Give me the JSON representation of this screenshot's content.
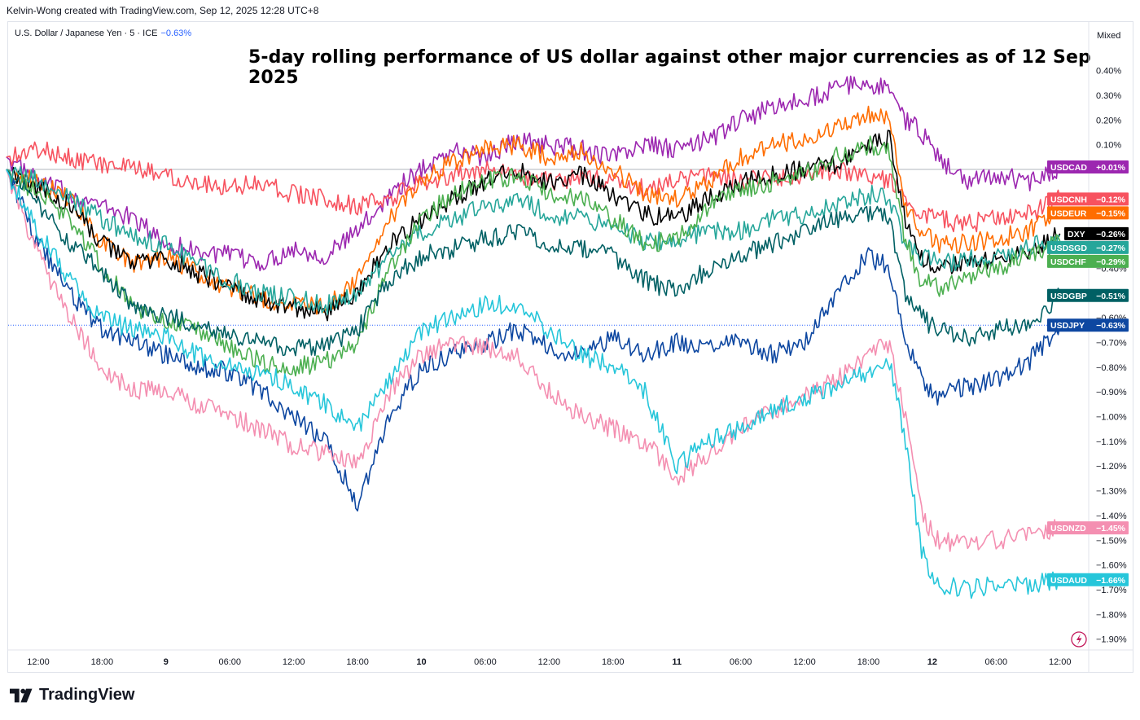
{
  "header": {
    "credit": "Kelvin-Wong created with TradingView.com, Sep 12, 2025 12:28 UTC+8",
    "symbol": "U.S. Dollar / Japanese Yen · 5 · ICE",
    "symbol_change": "−0.63%",
    "scale_mode": "Mixed"
  },
  "footer": {
    "brand": "TradingView"
  },
  "chart_data": {
    "type": "line",
    "title": "5-day rolling performance of US dollar against other major currencies as of 12 Sep 2025",
    "xlabel": "",
    "ylabel": "",
    "ylim": [
      -1.95,
      0.52
    ],
    "y_unit": "%",
    "y_ticks": [
      "0.40%",
      "0.30%",
      "0.20%",
      "0.10%",
      "−0.40%",
      "−0.60%",
      "−0.70%",
      "−0.80%",
      "−0.90%",
      "−1.00%",
      "−1.10%",
      "−1.20%",
      "−1.30%",
      "−1.40%",
      "−1.50%",
      "−1.60%",
      "−1.70%",
      "−1.80%",
      "−1.90%"
    ],
    "y_tick_values": [
      0.4,
      0.3,
      0.2,
      0.1,
      -0.4,
      -0.6,
      -0.7,
      -0.8,
      -0.9,
      -1.0,
      -1.1,
      -1.2,
      -1.3,
      -1.4,
      -1.5,
      -1.6,
      -1.7,
      -1.8,
      -1.9
    ],
    "x_ticks": [
      "12:00",
      "18:00",
      "9",
      "06:00",
      "12:00",
      "18:00",
      "10",
      "06:00",
      "12:00",
      "18:00",
      "11",
      "06:00",
      "12:00",
      "18:00",
      "12",
      "06:00",
      "12:00"
    ],
    "x_tick_hours": [
      12,
      18,
      24,
      30,
      36,
      42,
      48,
      54,
      60,
      66,
      72,
      78,
      84,
      90,
      96,
      102,
      108
    ],
    "x_range_hours": [
      9,
      110.5
    ],
    "zero_line": 0.0,
    "grid": false,
    "legend": "right-axis badges",
    "series": [
      {
        "name": "USDCAD",
        "label": "+0.01%",
        "color": "#9c27b0",
        "x": [
          9,
          12,
          15,
          18,
          21,
          24,
          27,
          30,
          33,
          36,
          39,
          42,
          45,
          48,
          51,
          54,
          57,
          60,
          63,
          66,
          69,
          72,
          75,
          78,
          81,
          84,
          87,
          90,
          92,
          93.5,
          95,
          96.5,
          99,
          102,
          105,
          108
        ],
        "y": [
          0.05,
          -0.05,
          -0.1,
          -0.15,
          -0.2,
          -0.3,
          -0.33,
          -0.35,
          -0.38,
          -0.32,
          -0.35,
          -0.25,
          -0.1,
          0.0,
          0.08,
          0.05,
          0.12,
          0.1,
          0.08,
          0.05,
          0.1,
          0.08,
          0.12,
          0.2,
          0.25,
          0.28,
          0.33,
          0.35,
          0.32,
          0.2,
          0.15,
          0.05,
          -0.05,
          -0.02,
          -0.05,
          0.01
        ]
      },
      {
        "name": "USDCNH",
        "label": "−0.12%",
        "color": "#f7525f",
        "x": [
          9,
          12,
          15,
          18,
          21,
          24,
          27,
          30,
          33,
          36,
          39,
          42,
          45,
          48,
          51,
          54,
          57,
          60,
          63,
          66,
          69,
          72,
          75,
          78,
          81,
          84,
          87,
          90,
          92,
          93.5,
          95,
          96.5,
          99,
          102,
          105,
          108
        ],
        "y": [
          0.05,
          0.08,
          0.05,
          0.02,
          0.0,
          -0.02,
          -0.05,
          -0.07,
          -0.05,
          -0.1,
          -0.12,
          -0.15,
          -0.12,
          -0.05,
          -0.02,
          0.0,
          -0.02,
          -0.05,
          -0.03,
          -0.05,
          -0.08,
          -0.05,
          -0.03,
          -0.05,
          -0.03,
          -0.02,
          0.0,
          -0.02,
          -0.05,
          -0.1,
          -0.18,
          -0.2,
          -0.22,
          -0.2,
          -0.18,
          -0.12
        ]
      },
      {
        "name": "USDEUR",
        "label": "−0.15%",
        "color": "#ff6d00",
        "x": [
          9,
          12,
          15,
          18,
          21,
          24,
          27,
          30,
          33,
          36,
          39,
          42,
          45,
          48,
          51,
          54,
          57,
          60,
          63,
          66,
          69,
          72,
          75,
          78,
          81,
          84,
          87,
          90,
          92,
          93.5,
          95,
          96.5,
          99,
          102,
          105,
          108
        ],
        "y": [
          0.0,
          -0.05,
          -0.12,
          -0.3,
          -0.38,
          -0.35,
          -0.42,
          -0.48,
          -0.52,
          -0.55,
          -0.55,
          -0.45,
          -0.2,
          -0.05,
          0.03,
          0.08,
          0.1,
          0.05,
          0.08,
          0.0,
          -0.1,
          -0.12,
          -0.05,
          0.05,
          0.1,
          0.12,
          0.18,
          0.22,
          0.2,
          -0.15,
          -0.25,
          -0.3,
          -0.3,
          -0.28,
          -0.25,
          -0.15
        ]
      },
      {
        "name": "DXY",
        "label": "−0.26%",
        "color": "#000000",
        "x": [
          9,
          12,
          15,
          18,
          21,
          24,
          27,
          30,
          33,
          36,
          39,
          42,
          45,
          48,
          51,
          54,
          57,
          60,
          63,
          66,
          69,
          72,
          75,
          78,
          81,
          84,
          87,
          90,
          92,
          93.5,
          95,
          96.5,
          99,
          102,
          105,
          108
        ],
        "y": [
          0.0,
          -0.08,
          -0.15,
          -0.3,
          -0.38,
          -0.36,
          -0.42,
          -0.48,
          -0.53,
          -0.56,
          -0.58,
          -0.5,
          -0.3,
          -0.2,
          -0.12,
          -0.05,
          0.0,
          -0.05,
          -0.02,
          -0.1,
          -0.18,
          -0.2,
          -0.12,
          -0.05,
          -0.02,
          0.0,
          0.02,
          0.1,
          0.12,
          -0.2,
          -0.35,
          -0.4,
          -0.38,
          -0.36,
          -0.34,
          -0.26
        ]
      },
      {
        "name": "USDSGD",
        "label": "−0.27%",
        "color": "#26a69a",
        "x": [
          9,
          12,
          15,
          18,
          21,
          24,
          27,
          30,
          33,
          36,
          39,
          42,
          45,
          48,
          51,
          54,
          57,
          60,
          63,
          66,
          69,
          72,
          75,
          78,
          81,
          84,
          87,
          90,
          92,
          93.5,
          95,
          96.5,
          99,
          102,
          105,
          108
        ],
        "y": [
          0.0,
          -0.05,
          -0.12,
          -0.2,
          -0.28,
          -0.3,
          -0.38,
          -0.45,
          -0.5,
          -0.52,
          -0.55,
          -0.5,
          -0.35,
          -0.25,
          -0.2,
          -0.15,
          -0.12,
          -0.18,
          -0.2,
          -0.22,
          -0.3,
          -0.28,
          -0.25,
          -0.25,
          -0.2,
          -0.18,
          -0.15,
          -0.1,
          -0.12,
          -0.3,
          -0.35,
          -0.38,
          -0.37,
          -0.35,
          -0.32,
          -0.27
        ]
      },
      {
        "name": "USDCHF",
        "label": "−0.29%",
        "color": "#4caf50",
        "x": [
          9,
          12,
          15,
          18,
          21,
          24,
          27,
          30,
          33,
          36,
          39,
          42,
          45,
          48,
          51,
          54,
          57,
          60,
          63,
          66,
          69,
          72,
          75,
          78,
          81,
          84,
          87,
          90,
          92,
          93.5,
          95,
          96.5,
          99,
          102,
          105,
          108
        ],
        "y": [
          0.0,
          -0.1,
          -0.2,
          -0.4,
          -0.55,
          -0.62,
          -0.65,
          -0.72,
          -0.78,
          -0.8,
          -0.78,
          -0.7,
          -0.4,
          -0.2,
          -0.1,
          -0.05,
          -0.02,
          -0.1,
          -0.12,
          -0.2,
          -0.3,
          -0.28,
          -0.15,
          -0.08,
          -0.05,
          -0.02,
          0.05,
          0.1,
          0.08,
          -0.3,
          -0.45,
          -0.48,
          -0.45,
          -0.4,
          -0.35,
          -0.29
        ]
      },
      {
        "name": "USDGBP",
        "label": "−0.51%",
        "color": "#006064",
        "x": [
          9,
          12,
          15,
          18,
          21,
          24,
          27,
          30,
          33,
          36,
          39,
          42,
          45,
          48,
          51,
          54,
          57,
          60,
          63,
          66,
          69,
          72,
          75,
          78,
          81,
          84,
          87,
          90,
          92,
          93.5,
          95,
          96.5,
          99,
          102,
          105,
          108
        ],
        "y": [
          0.0,
          -0.15,
          -0.3,
          -0.42,
          -0.55,
          -0.6,
          -0.62,
          -0.68,
          -0.7,
          -0.72,
          -0.72,
          -0.65,
          -0.45,
          -0.35,
          -0.32,
          -0.28,
          -0.25,
          -0.3,
          -0.32,
          -0.35,
          -0.45,
          -0.5,
          -0.4,
          -0.35,
          -0.3,
          -0.25,
          -0.2,
          -0.18,
          -0.2,
          -0.5,
          -0.6,
          -0.65,
          -0.68,
          -0.65,
          -0.62,
          -0.51
        ]
      },
      {
        "name": "USDJPY",
        "label": "−0.63%",
        "color": "#0d47a1",
        "x": [
          9,
          12,
          15,
          18,
          21,
          24,
          27,
          30,
          33,
          36,
          39,
          42,
          45,
          48,
          51,
          54,
          57,
          60,
          63,
          66,
          69,
          72,
          75,
          78,
          81,
          84,
          87,
          90,
          92,
          93.5,
          95,
          96.5,
          99,
          102,
          105,
          108
        ],
        "y": [
          0.0,
          -0.3,
          -0.5,
          -0.65,
          -0.7,
          -0.75,
          -0.8,
          -0.82,
          -0.9,
          -1.0,
          -1.1,
          -1.35,
          -1.0,
          -0.8,
          -0.75,
          -0.7,
          -0.65,
          -0.72,
          -0.75,
          -0.68,
          -0.75,
          -0.7,
          -0.72,
          -0.7,
          -0.75,
          -0.7,
          -0.5,
          -0.35,
          -0.4,
          -0.7,
          -0.85,
          -0.92,
          -0.88,
          -0.85,
          -0.78,
          -0.63
        ]
      },
      {
        "name": "USDNZD",
        "label": "−1.45%",
        "color": "#f48fb1",
        "x": [
          9,
          12,
          15,
          18,
          21,
          24,
          27,
          30,
          33,
          36,
          39,
          42,
          45,
          48,
          51,
          54,
          57,
          60,
          63,
          66,
          69,
          72,
          75,
          78,
          81,
          84,
          87,
          90,
          92,
          93.5,
          95,
          96.5,
          99,
          102,
          105,
          108
        ],
        "y": [
          0.0,
          -0.35,
          -0.6,
          -0.8,
          -0.9,
          -0.88,
          -0.95,
          -1.0,
          -1.05,
          -1.12,
          -1.15,
          -1.2,
          -0.9,
          -0.75,
          -0.7,
          -0.72,
          -0.75,
          -0.9,
          -1.0,
          -1.05,
          -1.1,
          -1.25,
          -1.15,
          -1.05,
          -0.98,
          -0.92,
          -0.85,
          -0.75,
          -0.7,
          -1.0,
          -1.4,
          -1.5,
          -1.52,
          -1.5,
          -1.48,
          -1.45
        ]
      },
      {
        "name": "USDAUD",
        "label": "−1.66%",
        "color": "#26c6da",
        "x": [
          9,
          12,
          15,
          18,
          21,
          24,
          27,
          30,
          33,
          36,
          39,
          42,
          45,
          48,
          51,
          54,
          57,
          60,
          63,
          66,
          69,
          72,
          75,
          78,
          81,
          84,
          87,
          90,
          92,
          93.5,
          95,
          96.5,
          99,
          102,
          105,
          108
        ],
        "y": [
          0.0,
          -0.25,
          -0.45,
          -0.6,
          -0.65,
          -0.68,
          -0.75,
          -0.8,
          -0.82,
          -0.88,
          -0.95,
          -1.05,
          -0.85,
          -0.65,
          -0.6,
          -0.55,
          -0.55,
          -0.65,
          -0.75,
          -0.8,
          -0.9,
          -1.2,
          -1.1,
          -1.05,
          -0.98,
          -0.92,
          -0.88,
          -0.82,
          -0.78,
          -1.1,
          -1.55,
          -1.68,
          -1.7,
          -1.68,
          -1.68,
          -1.66
        ]
      }
    ]
  }
}
